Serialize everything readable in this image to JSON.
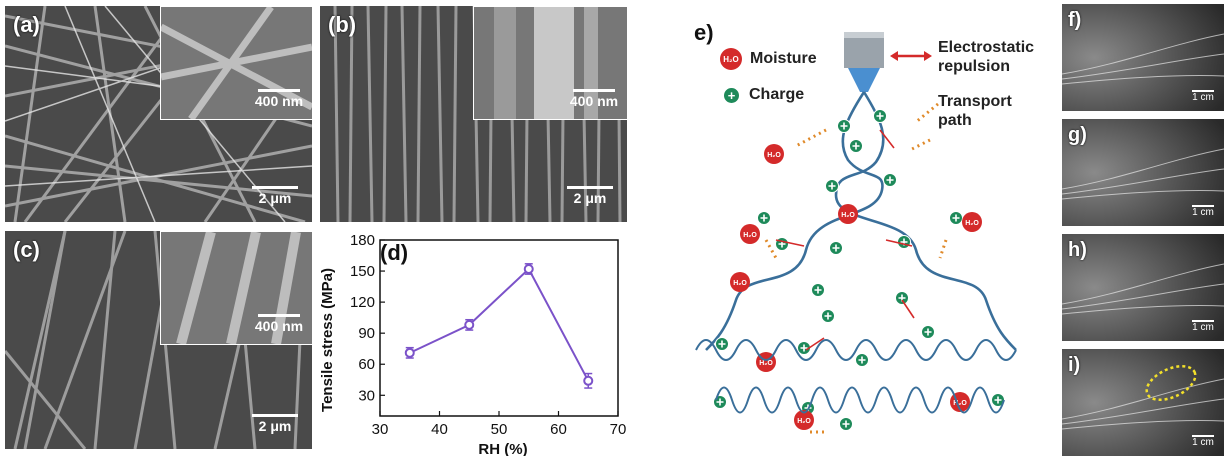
{
  "panels": {
    "a": {
      "label": "(a)",
      "inset_scale": "400 nm",
      "main_scale": "2 μm"
    },
    "b": {
      "label": "(b)",
      "inset_scale": "400 nm",
      "main_scale": "2 μm"
    },
    "c": {
      "label": "(c)",
      "inset_scale": "400 nm",
      "main_scale": "2 μm"
    },
    "d": {
      "label": "(d)"
    },
    "e": {
      "label": "e)",
      "legend": {
        "moisture": "Moisture",
        "charge": "Charge",
        "repulsion_line1": "Electrostatic",
        "repulsion_line2": "repulsion",
        "transport_line1": "Transport",
        "transport_line2": "path"
      },
      "h2o_text": "H₂O",
      "charge_symbol": "+"
    },
    "photos": [
      {
        "label": "f)",
        "scale": "1 cm"
      },
      {
        "label": "g)",
        "scale": "1 cm"
      },
      {
        "label": "h)",
        "scale": "1 cm"
      },
      {
        "label": "i)",
        "scale": "1 cm"
      }
    ]
  },
  "colors": {
    "line": "#7b52c9",
    "fiber": "#3a6f9a",
    "moisture": "#d42a2a",
    "charge": "#1e8a5a",
    "repulsion_arrow": "#d42a2a",
    "transport_arrow": "#e08a2a",
    "highlight": "#f3e02a"
  },
  "chart_data": {
    "type": "line",
    "xlabel": "RH (%)",
    "ylabel": "Tensile stress (MPa)",
    "x": [
      35,
      45,
      55,
      65
    ],
    "values": [
      71,
      98,
      152,
      44
    ],
    "errors": [
      5,
      5,
      5,
      7
    ],
    "xlim": [
      30,
      70
    ],
    "ylim": [
      10,
      180
    ],
    "xticks": [
      30,
      40,
      50,
      60,
      70
    ],
    "yticks": [
      30,
      60,
      90,
      120,
      150,
      180
    ],
    "grid": false
  }
}
